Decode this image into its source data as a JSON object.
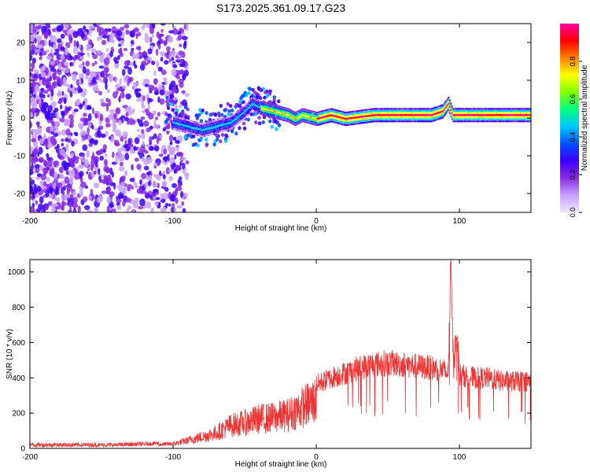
{
  "title": "S173.2025.361.09.17.G23",
  "chart_data": [
    {
      "type": "heatmap",
      "xlabel": "Height of straight line (km)",
      "ylabel": "Frequency (Hz)",
      "xlim": [
        -200,
        150
      ],
      "ylim": [
        -25,
        25
      ],
      "xticks": [
        -200,
        -100,
        0,
        100
      ],
      "xtick_labels": [
        "-200",
        "-100",
        "0",
        "100"
      ],
      "yticks": [
        -20,
        -10,
        0,
        10,
        20
      ],
      "ytick_labels": [
        "-20",
        "-10",
        "0",
        "10",
        "20"
      ],
      "colorbar": {
        "label": "Normalized spectral amplitude",
        "range": [
          0,
          1
        ],
        "ticks": [
          0.0,
          0.2,
          0.4,
          0.6,
          0.8
        ],
        "tick_labels": [
          "0.0",
          "0.2",
          "0.4",
          "0.6",
          "0.8"
        ],
        "colors": [
          "#f0e6ff",
          "#c8a0ff",
          "#8a2be2",
          "#3c00ff",
          "#0050ff",
          "#00c8ff",
          "#00ff80",
          "#80ff00",
          "#ffff00",
          "#ff8000",
          "#ff0000",
          "#ff00a0"
        ]
      },
      "ridge": {
        "description": "dominant frequency ridge",
        "points": [
          [
            -100,
            -1
          ],
          [
            -90,
            -2
          ],
          [
            -80,
            -3
          ],
          [
            -70,
            -2
          ],
          [
            -60,
            -1
          ],
          [
            -50,
            2
          ],
          [
            -45,
            4
          ],
          [
            -40,
            3
          ],
          [
            -30,
            2
          ],
          [
            -20,
            1
          ],
          [
            -15,
            0
          ],
          [
            -10,
            1
          ],
          [
            0,
            0
          ],
          [
            10,
            1
          ],
          [
            20,
            0
          ],
          [
            40,
            1
          ],
          [
            60,
            1
          ],
          [
            80,
            1
          ],
          [
            88,
            2
          ],
          [
            92,
            4
          ],
          [
            95,
            1
          ],
          [
            100,
            1
          ],
          [
            120,
            1
          ],
          [
            150,
            1
          ]
        ]
      }
    },
    {
      "type": "line",
      "xlabel": "Height of straight line (km)",
      "ylabel": "SNR (10 * v/v)",
      "xlim": [
        -200,
        150
      ],
      "ylim": [
        0,
        1070
      ],
      "xticks": [
        -200,
        -100,
        0,
        100
      ],
      "xtick_labels": [
        "-200",
        "-100",
        "0",
        "100"
      ],
      "yticks": [
        0,
        200,
        400,
        600,
        800,
        1000
      ],
      "ytick_labels": [
        "0",
        "200",
        "400",
        "600",
        "800",
        "1000"
      ],
      "series_color": "#ee3333",
      "series": [
        {
          "name": "SNR",
          "envelope": [
            [
              -200,
              20
            ],
            [
              -180,
              20
            ],
            [
              -160,
              20
            ],
            [
              -140,
              20
            ],
            [
              -120,
              25
            ],
            [
              -100,
              35
            ],
            [
              -90,
              60
            ],
            [
              -80,
              90
            ],
            [
              -70,
              120
            ],
            [
              -60,
              180
            ],
            [
              -50,
              200
            ],
            [
              -40,
              230
            ],
            [
              -30,
              240
            ],
            [
              -20,
              260
            ],
            [
              -10,
              320
            ],
            [
              0,
              380
            ],
            [
              10,
              420
            ],
            [
              20,
              450
            ],
            [
              30,
              480
            ],
            [
              40,
              500
            ],
            [
              50,
              510
            ],
            [
              60,
              500
            ],
            [
              70,
              490
            ],
            [
              80,
              480
            ],
            [
              88,
              470
            ],
            [
              92,
              440
            ],
            [
              94,
              1060
            ],
            [
              96,
              460
            ],
            [
              98,
              760
            ],
            [
              100,
              440
            ],
            [
              110,
              420
            ],
            [
              120,
              420
            ],
            [
              130,
              400
            ],
            [
              140,
              400
            ],
            [
              150,
              400
            ]
          ]
        }
      ]
    }
  ]
}
